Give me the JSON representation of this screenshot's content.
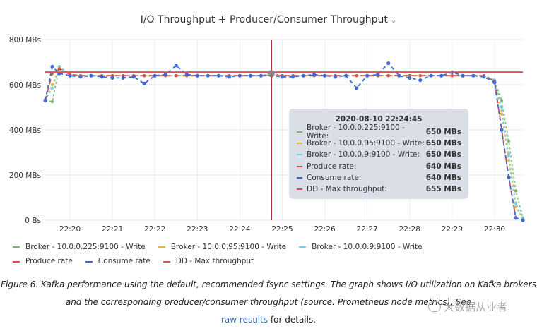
{
  "chart_data": {
    "type": "line",
    "title": "I/O Throughput + Producer/Consumer Throughput",
    "x_ticks": [
      "22:20",
      "22:21",
      "22:22",
      "22:23",
      "22:24",
      "22:25",
      "22:26",
      "22:27",
      "22:28",
      "22:29",
      "22:30"
    ],
    "y_ticks": [
      "0 Bs",
      "200 MBs",
      "400 MBs",
      "600 MBs",
      "800 MBs"
    ],
    "ylim": [
      0,
      800
    ],
    "xlim": [
      "22:19:25",
      "22:30:40"
    ],
    "grid": true,
    "legend_placement": "bottom",
    "hover_time": "22:24:45",
    "x": [
      "22:19:25",
      "22:19:35",
      "22:19:45",
      "22:20:00",
      "22:20:15",
      "22:20:30",
      "22:20:45",
      "22:21:00",
      "22:21:15",
      "22:21:30",
      "22:21:45",
      "22:22:00",
      "22:22:15",
      "22:22:30",
      "22:22:45",
      "22:23:00",
      "22:23:15",
      "22:23:30",
      "22:23:45",
      "22:24:00",
      "22:24:15",
      "22:24:30",
      "22:24:45",
      "22:25:00",
      "22:25:15",
      "22:25:30",
      "22:25:45",
      "22:26:00",
      "22:26:15",
      "22:26:30",
      "22:26:45",
      "22:27:00",
      "22:27:15",
      "22:27:30",
      "22:27:45",
      "22:28:00",
      "22:28:15",
      "22:28:30",
      "22:28:45",
      "22:29:00",
      "22:29:15",
      "22:29:30",
      "22:29:45",
      "22:30:00",
      "22:30:10",
      "22:30:20",
      "22:30:30",
      "22:30:40"
    ],
    "series": [
      {
        "name": "Broker - 10.0.0.225:9100 - Write",
        "color": "#7eb26d",
        "values": [
          530,
          525,
          680,
          645,
          640,
          640,
          640,
          640,
          640,
          640,
          640,
          640,
          640,
          640,
          640,
          640,
          640,
          640,
          640,
          640,
          640,
          640,
          650,
          640,
          640,
          640,
          640,
          640,
          640,
          640,
          640,
          640,
          640,
          640,
          640,
          640,
          640,
          640,
          640,
          640,
          640,
          640,
          640,
          620,
          530,
          350,
          130,
          10
        ]
      },
      {
        "name": "Broker - 10.0.0.95:9100 - Write",
        "color": "#eab839",
        "values": [
          530,
          600,
          675,
          645,
          640,
          640,
          640,
          640,
          640,
          640,
          640,
          640,
          640,
          640,
          640,
          640,
          640,
          640,
          640,
          640,
          640,
          640,
          650,
          640,
          640,
          640,
          640,
          640,
          640,
          640,
          640,
          640,
          640,
          640,
          640,
          640,
          640,
          640,
          640,
          640,
          640,
          640,
          640,
          620,
          470,
          265,
          60,
          5
        ]
      },
      {
        "name": "Broker - 10.0.0.9:9100 - Write",
        "color": "#6ed0e0",
        "values": [
          530,
          585,
          675,
          645,
          640,
          640,
          640,
          640,
          640,
          640,
          640,
          640,
          640,
          640,
          640,
          640,
          640,
          640,
          640,
          640,
          640,
          640,
          650,
          640,
          640,
          640,
          640,
          640,
          640,
          640,
          640,
          640,
          640,
          640,
          640,
          640,
          640,
          640,
          640,
          640,
          640,
          640,
          640,
          620,
          500,
          290,
          75,
          5
        ]
      },
      {
        "name": "Produce rate",
        "color": "#e24d42",
        "values": [
          530,
          650,
          670,
          645,
          640,
          640,
          640,
          640,
          640,
          640,
          640,
          640,
          640,
          640,
          640,
          640,
          640,
          640,
          640,
          640,
          640,
          640,
          640,
          640,
          640,
          640,
          640,
          640,
          640,
          640,
          640,
          640,
          640,
          640,
          640,
          640,
          640,
          640,
          640,
          640,
          640,
          640,
          640,
          615,
          400,
          190,
          10,
          0
        ]
      },
      {
        "name": "Consume rate",
        "color": "#3f6bd9",
        "values": [
          530,
          680,
          650,
          640,
          635,
          640,
          635,
          630,
          630,
          635,
          605,
          640,
          645,
          685,
          645,
          640,
          640,
          640,
          635,
          640,
          640,
          640,
          640,
          635,
          635,
          640,
          645,
          640,
          635,
          640,
          585,
          640,
          645,
          695,
          640,
          630,
          620,
          640,
          640,
          655,
          640,
          640,
          635,
          610,
          400,
          190,
          10,
          0
        ]
      },
      {
        "name": "DD - Max throughput",
        "color": "#e0505a",
        "values": [
          655,
          655,
          655,
          655,
          655,
          655,
          655,
          655,
          655,
          655,
          655,
          655,
          655,
          655,
          655,
          655,
          655,
          655,
          655,
          655,
          655,
          655,
          655,
          655,
          655,
          655,
          655,
          655,
          655,
          655,
          655,
          655,
          655,
          655,
          655,
          655,
          655,
          655,
          655,
          655,
          655,
          655,
          655,
          655,
          655,
          655,
          655,
          655
        ]
      }
    ]
  },
  "tooltip": {
    "time": "2020-08-10 22:24:45",
    "rows": [
      {
        "label": "Broker - 10.0.0.225:9100 - Write:",
        "value": "650 MBs",
        "color": "#7eb26d"
      },
      {
        "label": "Broker - 10.0.0.95:9100 - Write:",
        "value": "650 MBs",
        "color": "#eab839"
      },
      {
        "label": "Broker - 10.0.0.9:9100 - Write:",
        "value": "650 MBs",
        "color": "#6ed0e0"
      },
      {
        "label": "Produce rate:",
        "value": "640 MBs",
        "color": "#e24d42"
      },
      {
        "label": "Consume rate:",
        "value": "640 MBs",
        "color": "#3f6bd9"
      },
      {
        "label": "DD - Max throughput:",
        "value": "655 MBs",
        "color": "#e0505a"
      }
    ]
  },
  "caption": {
    "text": "Figure 6. Kafka performance using the default, recommended fsync settings. The graph shows I/O utilization on Kafka brokers and the corresponding producer/consumer throughput (source: Prometheus node metrics). See",
    "link": "raw results",
    "tail": "for details."
  },
  "watermark": "大数据从业者"
}
